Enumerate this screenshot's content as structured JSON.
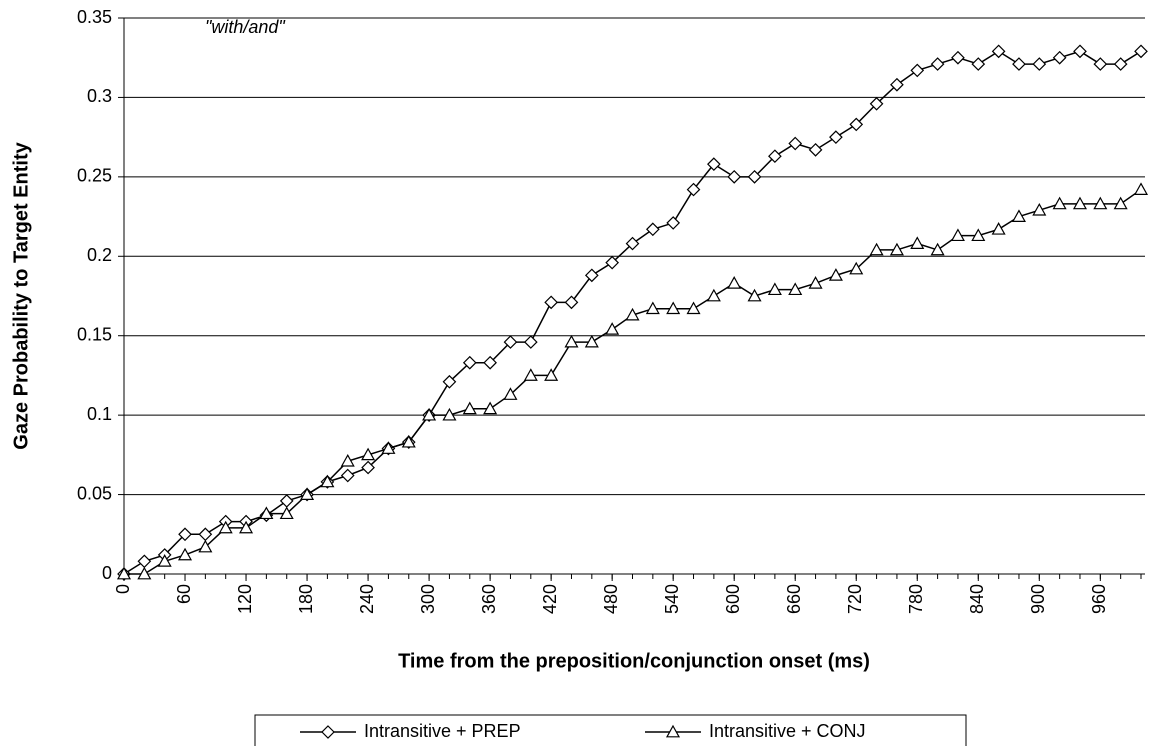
{
  "chart_data": {
    "type": "line",
    "annotation": "\"with/and\"",
    "xlabel": "Time from the preposition/conjunction onset (ms)",
    "ylabel": "Gaze Probability to Target Entity",
    "x": [
      0,
      20,
      40,
      60,
      80,
      100,
      120,
      140,
      160,
      180,
      200,
      220,
      240,
      260,
      280,
      300,
      320,
      340,
      360,
      380,
      400,
      420,
      440,
      460,
      480,
      500,
      520,
      540,
      560,
      580,
      600,
      620,
      640,
      660,
      680,
      700,
      720,
      740,
      760,
      780,
      800,
      820,
      840,
      860,
      880,
      900,
      920,
      940,
      960,
      980,
      1000
    ],
    "xlim": [
      0,
      1000
    ],
    "xticks": [
      0,
      60,
      120,
      180,
      240,
      300,
      360,
      420,
      480,
      540,
      600,
      660,
      720,
      780,
      840,
      900,
      960
    ],
    "ylim": [
      0,
      0.35
    ],
    "yticks": [
      0,
      0.05,
      0.1,
      0.15,
      0.2,
      0.25,
      0.3,
      0.35
    ],
    "grid": true,
    "legend": "bottom",
    "series": [
      {
        "name": "Intransitive + PREP",
        "color": "#000000",
        "marker": "diamond",
        "values": [
          0,
          0.008,
          0.012,
          0.025,
          0.025,
          0.033,
          0.033,
          0.037,
          0.046,
          0.05,
          0.058,
          0.062,
          0.067,
          0.079,
          0.083,
          0.1,
          0.121,
          0.133,
          0.133,
          0.146,
          0.146,
          0.171,
          0.171,
          0.188,
          0.196,
          0.208,
          0.217,
          0.221,
          0.242,
          0.258,
          0.25,
          0.25,
          0.263,
          0.271,
          0.267,
          0.275,
          0.283,
          0.296,
          0.308,
          0.317,
          0.321,
          0.325,
          0.321,
          0.329,
          0.321,
          0.321,
          0.325,
          0.329,
          0.321,
          0.321,
          0.329
        ]
      },
      {
        "name": "Intransitive + CONJ",
        "color": "#000000",
        "marker": "triangle",
        "values": [
          0,
          0,
          0.008,
          0.012,
          0.017,
          0.029,
          0.029,
          0.038,
          0.038,
          0.05,
          0.058,
          0.071,
          0.075,
          0.079,
          0.083,
          0.1,
          0.1,
          0.104,
          0.104,
          0.113,
          0.125,
          0.125,
          0.146,
          0.146,
          0.154,
          0.163,
          0.167,
          0.167,
          0.167,
          0.175,
          0.183,
          0.175,
          0.179,
          0.179,
          0.183,
          0.188,
          0.192,
          0.204,
          0.204,
          0.208,
          0.204,
          0.213,
          0.213,
          0.217,
          0.225,
          0.229,
          0.233,
          0.233,
          0.233,
          0.233,
          0.242
        ]
      }
    ]
  }
}
